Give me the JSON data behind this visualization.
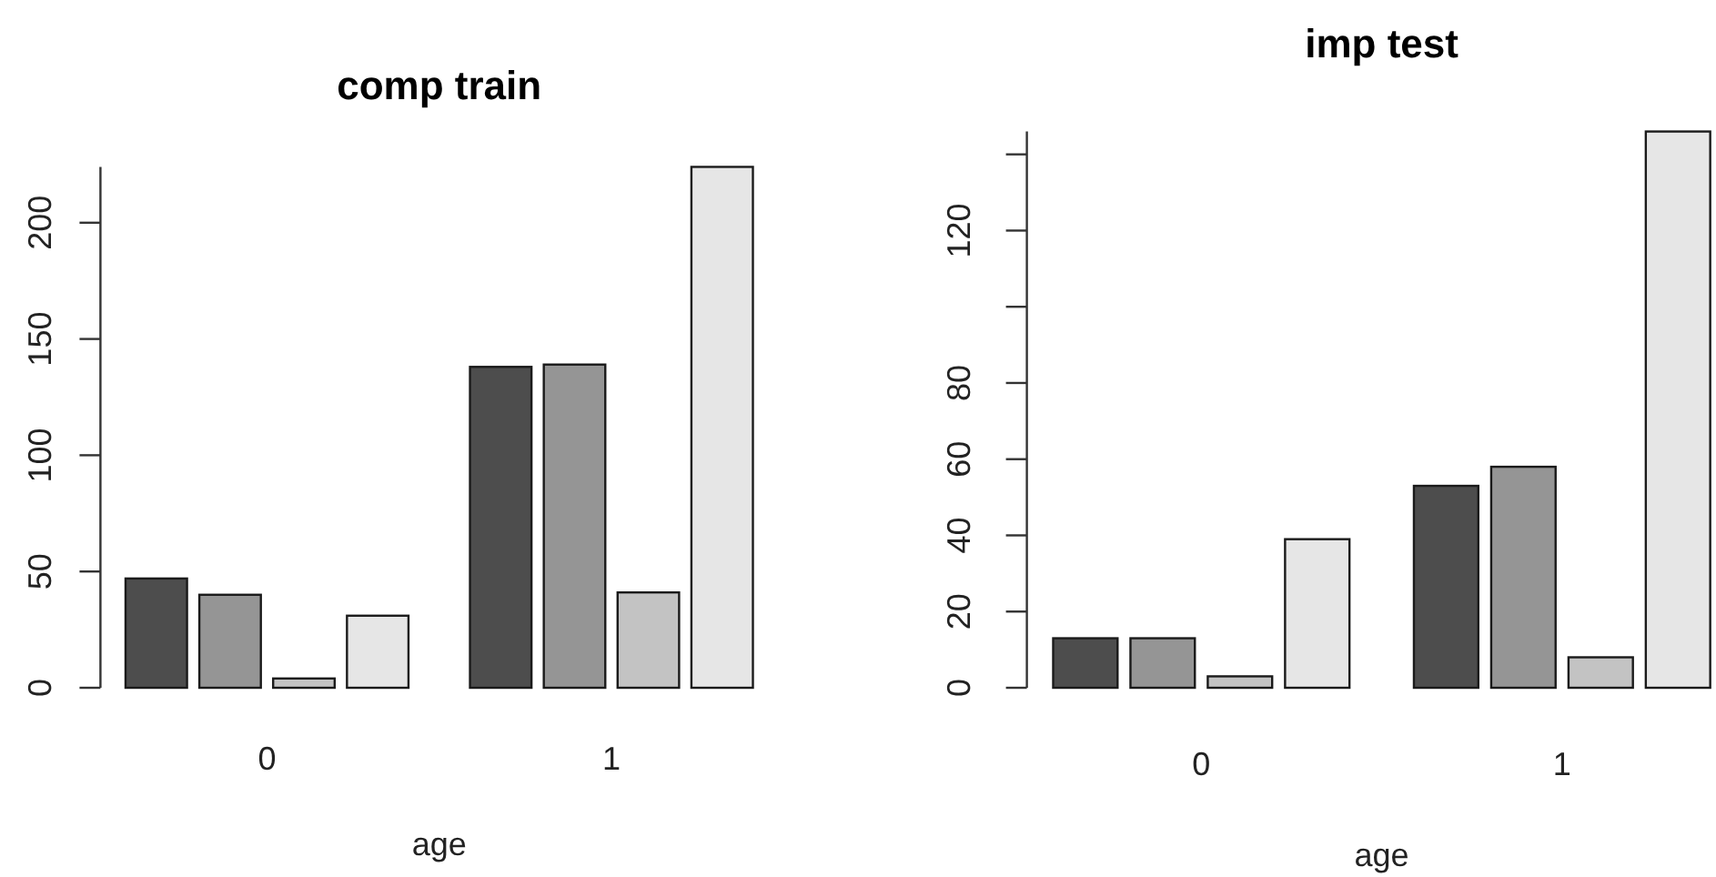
{
  "chart_data": [
    {
      "type": "bar",
      "title": "comp train",
      "xlabel": "age",
      "categories": [
        "0",
        "1"
      ],
      "series": [
        {
          "color": "#4d4d4d",
          "values": [
            47,
            138
          ]
        },
        {
          "color": "#959595",
          "values": [
            40,
            139
          ]
        },
        {
          "color": "#c3c3c3",
          "values": [
            4,
            41
          ]
        },
        {
          "color": "#e6e6e6",
          "values": [
            31,
            224
          ]
        }
      ],
      "ylim": [
        0,
        224
      ],
      "yticks": [
        0,
        50,
        100,
        150,
        200
      ]
    },
    {
      "type": "bar",
      "title": "imp test",
      "xlabel": "age",
      "categories": [
        "0",
        "1"
      ],
      "series": [
        {
          "color": "#4d4d4d",
          "values": [
            13,
            53
          ]
        },
        {
          "color": "#959595",
          "values": [
            13,
            58
          ]
        },
        {
          "color": "#c3c3c3",
          "values": [
            3,
            8
          ]
        },
        {
          "color": "#e6e6e6",
          "values": [
            39,
            146
          ]
        }
      ],
      "ylim": [
        0,
        146
      ],
      "yticks": [
        0,
        20,
        40,
        60,
        80,
        {
          "value": 100,
          "label": null
        },
        120,
        {
          "value": 140,
          "label": null
        }
      ]
    }
  ]
}
